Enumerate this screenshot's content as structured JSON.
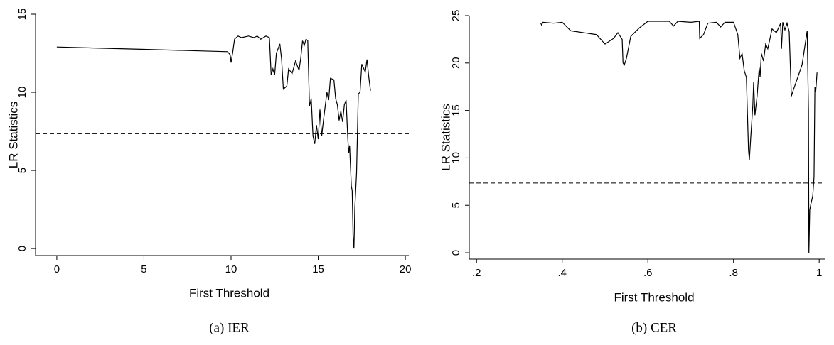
{
  "chart_data": [
    {
      "type": "line",
      "caption": "(a) IER",
      "xlabel": "First Threshold",
      "ylabel": "LR Statistics",
      "xlim": [
        -1.22,
        20.2
      ],
      "ylim": [
        -0.45,
        15
      ],
      "xticks": [
        0,
        5,
        10,
        15,
        20
      ],
      "yticks": [
        0,
        5,
        10,
        15
      ],
      "color": "#000000",
      "hline": 7.35,
      "x": [
        0,
        5,
        9.8,
        9.95,
        10.0,
        10.1,
        10.2,
        10.4,
        10.6,
        11,
        11.3,
        11.5,
        11.7,
        12,
        12.2,
        12.3,
        12.4,
        12.5,
        12.6,
        12.8,
        12.9,
        13.0,
        13.2,
        13.3,
        13.5,
        13.7,
        13.9,
        14.0,
        14.1,
        14.2,
        14.3,
        14.4,
        14.5,
        14.6,
        14.7,
        14.8,
        14.9,
        15.0,
        15.1,
        15.2,
        15.3,
        15.5,
        15.6,
        15.7,
        15.9,
        16.0,
        16.1,
        16.2,
        16.3,
        16.4,
        16.5,
        16.6,
        16.7,
        16.75,
        16.8,
        16.9,
        16.95,
        17.0,
        17.05,
        17.1,
        17.2,
        17.3,
        17.4,
        17.5,
        17.7,
        17.8,
        17.9,
        18.0
      ],
      "values": [
        12.9,
        12.75,
        12.6,
        12.4,
        11.9,
        12.6,
        13.4,
        13.6,
        13.5,
        13.6,
        13.5,
        13.6,
        13.4,
        13.6,
        13.5,
        11.1,
        11.5,
        11.1,
        12.5,
        13.1,
        12.1,
        10.2,
        10.4,
        11.5,
        11.2,
        12.0,
        11.4,
        12.2,
        13.3,
        13.0,
        13.4,
        13.3,
        9.1,
        9.6,
        7.2,
        6.7,
        7.9,
        7.0,
        8.9,
        7.2,
        8.2,
        10.0,
        9.5,
        10.9,
        10.8,
        9.6,
        9.2,
        8.2,
        8.8,
        8.1,
        9.2,
        9.5,
        7.0,
        6.1,
        6.6,
        4.0,
        3.7,
        0.8,
        0.0,
        2.6,
        4.8,
        9.9,
        10.0,
        11.8,
        11.3,
        12.1,
        11.0,
        10.1
      ]
    },
    {
      "type": "line",
      "caption": "(b) CER",
      "xlabel": "First Threshold",
      "ylabel": "LR Statistics",
      "xlim": [
        0.183,
        1.013
      ],
      "ylim": [
        -0.67,
        25
      ],
      "xticks": [
        {
          "value": 0.2,
          "label": ".2"
        },
        {
          "value": 0.4,
          "label": ".4"
        },
        {
          "value": 0.6,
          "label": ".6"
        },
        {
          "value": 0.8,
          "label": ".8"
        },
        1
      ],
      "yticks": [
        0,
        5,
        10,
        15,
        20,
        25
      ],
      "color": "#000000",
      "hline": 7.35,
      "x": [
        0.35,
        0.352,
        0.355,
        0.38,
        0.4,
        0.42,
        0.45,
        0.48,
        0.5,
        0.52,
        0.53,
        0.54,
        0.542,
        0.545,
        0.55,
        0.56,
        0.58,
        0.6,
        0.65,
        0.66,
        0.67,
        0.7,
        0.72,
        0.721,
        0.73,
        0.74,
        0.76,
        0.77,
        0.78,
        0.8,
        0.81,
        0.815,
        0.82,
        0.825,
        0.83,
        0.835,
        0.837,
        0.84,
        0.845,
        0.847,
        0.85,
        0.855,
        0.86,
        0.862,
        0.865,
        0.87,
        0.875,
        0.88,
        0.89,
        0.9,
        0.91,
        0.912,
        0.915,
        0.92,
        0.925,
        0.93,
        0.935,
        0.94,
        0.96,
        0.972,
        0.975,
        0.976,
        0.978,
        0.98,
        0.985,
        0.988,
        0.99,
        0.992,
        0.995
      ],
      "values": [
        24.2,
        24.0,
        24.3,
        24.2,
        24.3,
        23.4,
        23.2,
        23.0,
        22.0,
        22.6,
        23.2,
        22.5,
        20.0,
        19.8,
        20.5,
        22.8,
        23.7,
        24.4,
        24.4,
        23.9,
        24.4,
        24.3,
        24.4,
        22.6,
        23.0,
        24.2,
        24.3,
        23.8,
        24.3,
        24.3,
        23.0,
        20.5,
        21.0,
        19.2,
        18.5,
        10.8,
        9.8,
        12.0,
        15.5,
        18.0,
        14.5,
        16.5,
        19.5,
        18.5,
        21.0,
        20.2,
        22.0,
        21.5,
        23.6,
        23.2,
        24.2,
        21.5,
        24.3,
        23.5,
        24.2,
        23.3,
        16.5,
        17.2,
        19.8,
        23.4,
        15.0,
        0.0,
        4.5,
        5.0,
        6.0,
        8.0,
        17.5,
        17.0,
        19.0
      ]
    }
  ]
}
